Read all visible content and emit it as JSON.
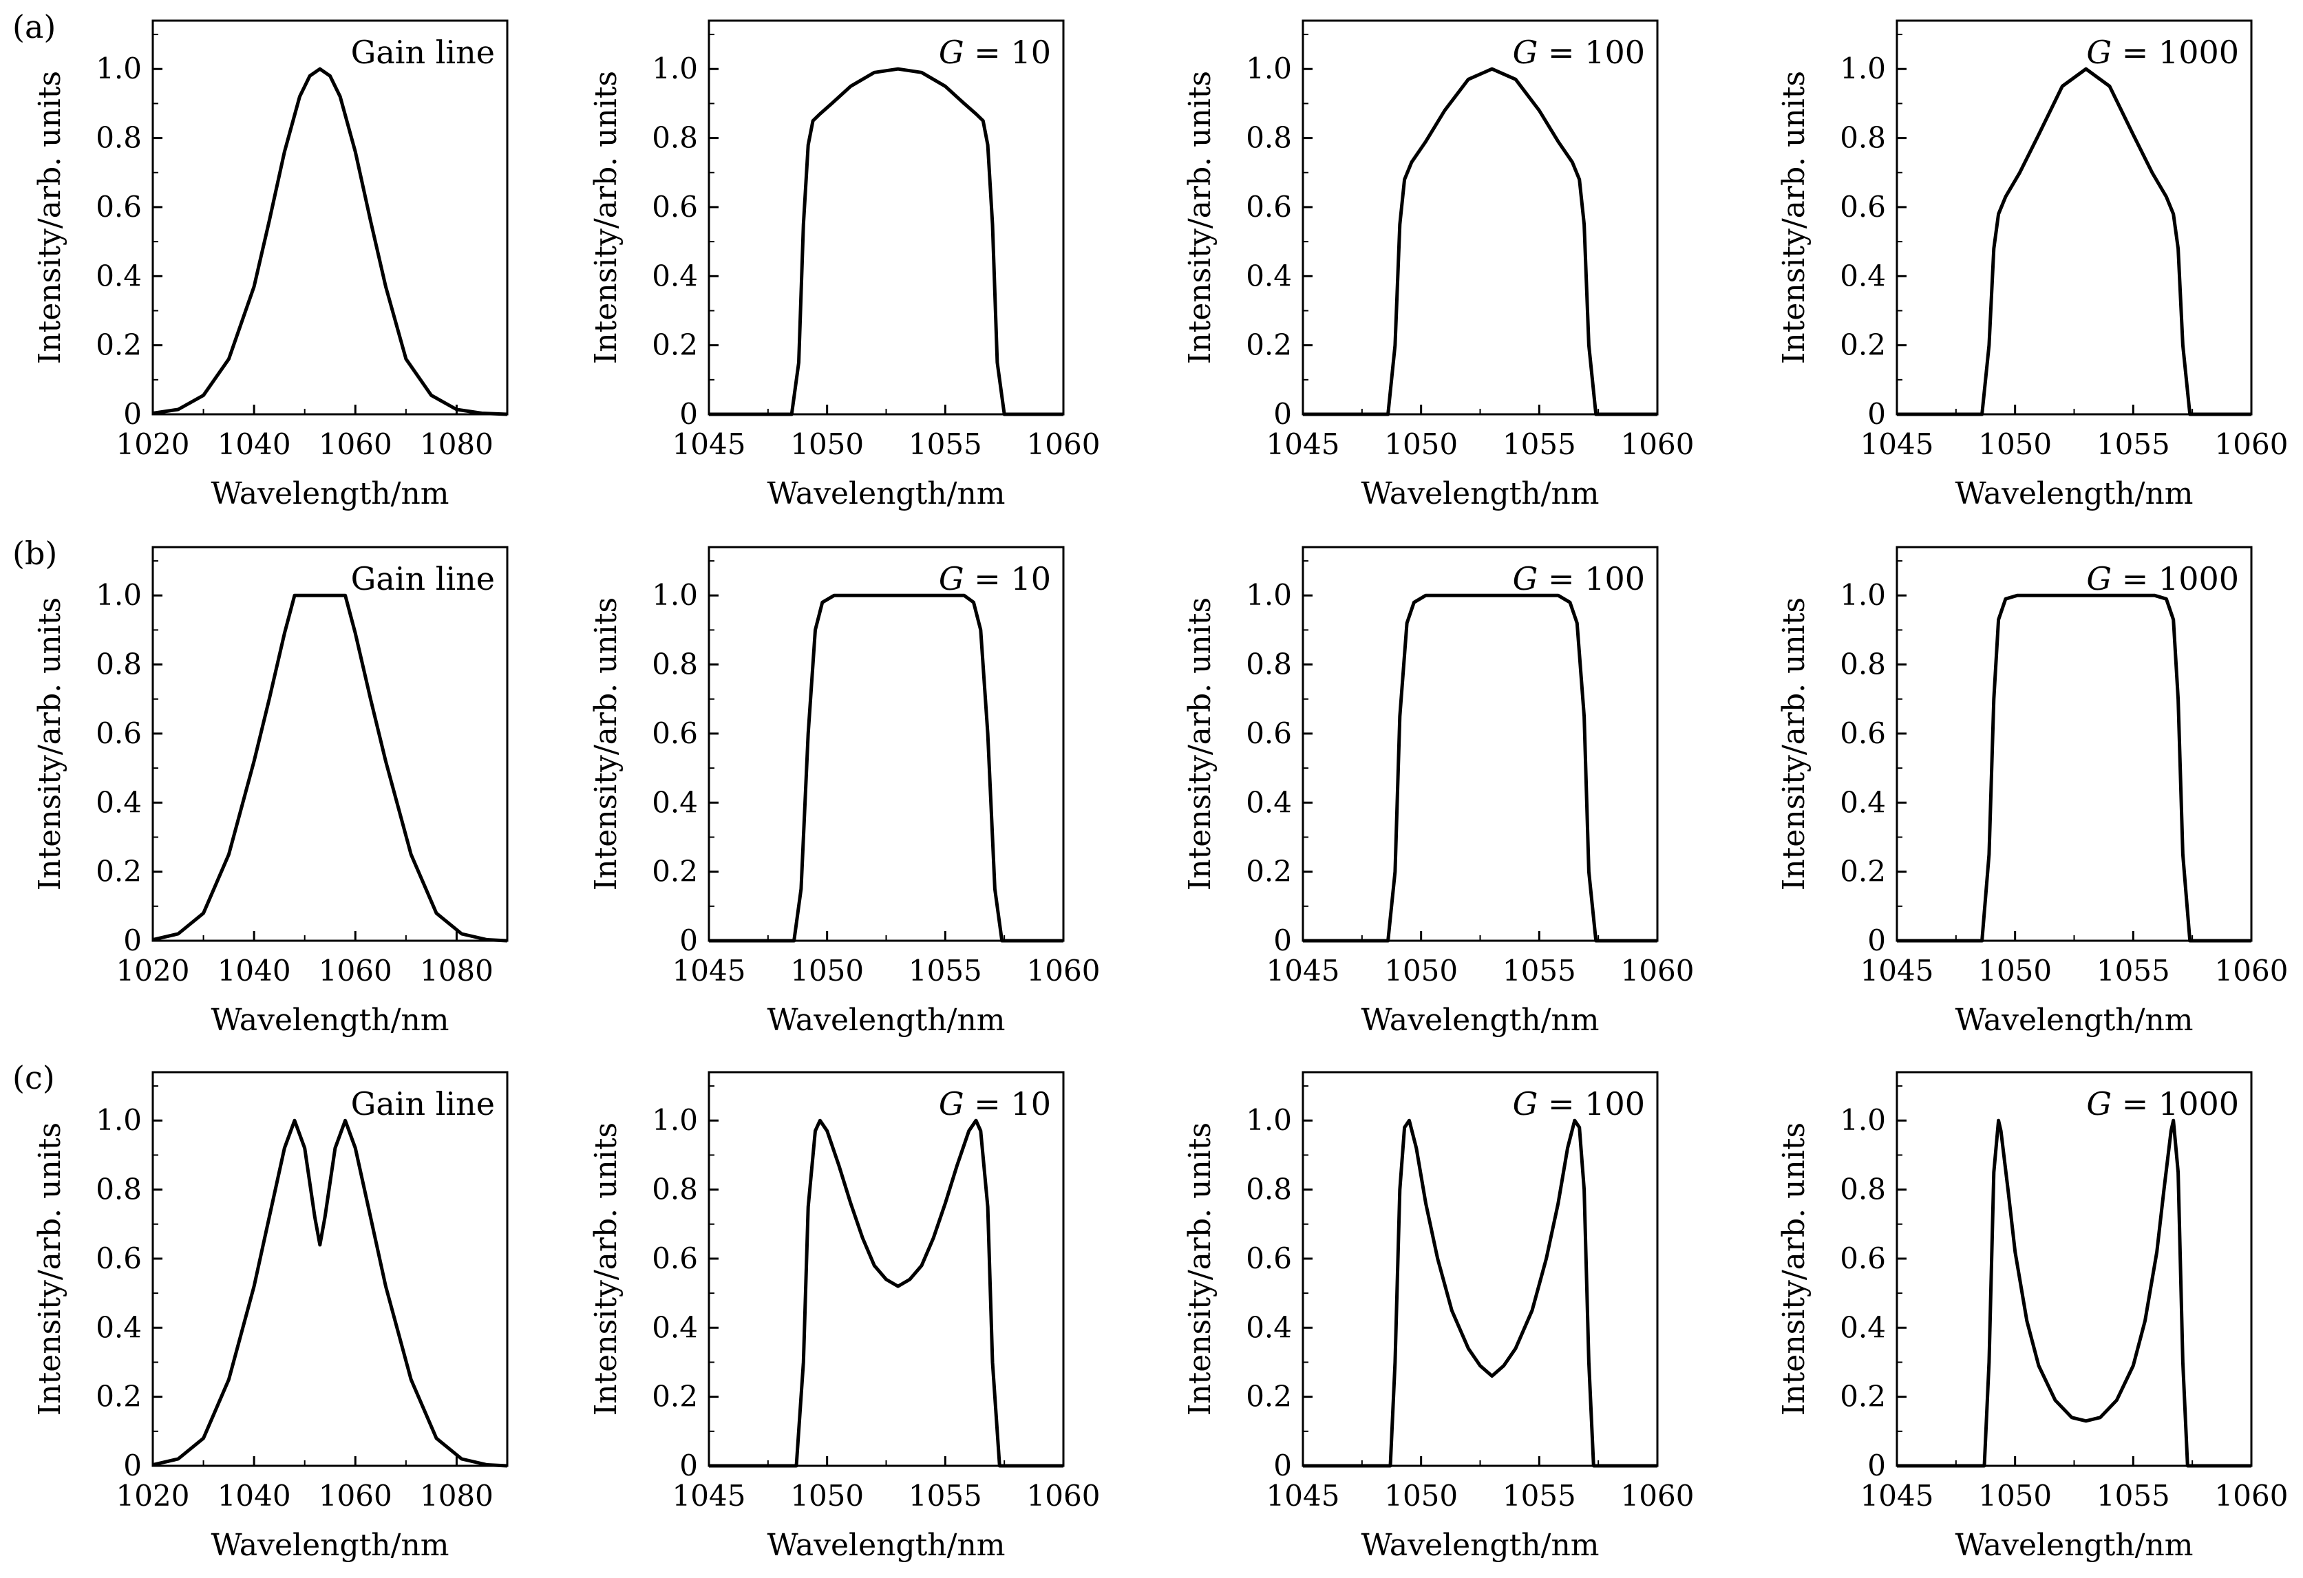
{
  "figure": {
    "rows": [
      {
        "label": "(a)",
        "gain_shape": "gaussian"
      },
      {
        "label": "(b)",
        "gain_shape": "flat-top"
      },
      {
        "label": "(c)",
        "gain_shape": "double-peak"
      }
    ]
  },
  "chart_data": [
    {
      "id": "a1",
      "type": "line",
      "row": "(a)",
      "label": "Gain line",
      "xlabel": "Wavelength/nm",
      "ylabel": "Intensity/arb. units",
      "xlim": [
        1020,
        1090
      ],
      "ylim": [
        0,
        1.14
      ],
      "xticks": [
        1020,
        1040,
        1060,
        1080
      ],
      "xtick_labels": [
        "1020",
        "1040",
        "1060",
        "1080"
      ],
      "yticks": [
        0,
        0.2,
        0.4,
        0.6,
        0.8,
        1.0
      ],
      "ytick_labels": [
        "0",
        "0.2",
        "0.4",
        "0.6",
        "0.8",
        "1.0"
      ],
      "x": [
        1020,
        1025,
        1030,
        1035,
        1040,
        1043,
        1046,
        1049,
        1051,
        1053,
        1055,
        1057,
        1060,
        1063,
        1066,
        1070,
        1075,
        1080,
        1085,
        1090
      ],
      "y": [
        0.003,
        0.014,
        0.055,
        0.16,
        0.37,
        0.56,
        0.76,
        0.92,
        0.98,
        1.0,
        0.98,
        0.92,
        0.76,
        0.56,
        0.37,
        0.16,
        0.055,
        0.014,
        0.003,
        0.0
      ]
    },
    {
      "id": "a2",
      "type": "line",
      "row": "(a)",
      "label": "G = 10",
      "gain": "10",
      "xlabel": "Wavelength/nm",
      "ylabel": "Intensity/arb. units",
      "xlim": [
        1045,
        1060
      ],
      "ylim": [
        0,
        1.14
      ],
      "xticks": [
        1045,
        1050,
        1055,
        1060
      ],
      "xtick_labels": [
        "1045",
        "1050",
        "1055",
        "1060"
      ],
      "yticks": [
        0,
        0.2,
        0.4,
        0.6,
        0.8,
        1.0
      ],
      "ytick_labels": [
        "0",
        "0.2",
        "0.4",
        "0.6",
        "0.8",
        "1.0"
      ],
      "x": [
        1045,
        1048.5,
        1048.8,
        1049.0,
        1049.2,
        1049.4,
        1049.7,
        1050.2,
        1051.0,
        1052.0,
        1053.0,
        1054.0,
        1055.0,
        1055.8,
        1056.3,
        1056.6,
        1056.8,
        1057.0,
        1057.2,
        1057.5,
        1060
      ],
      "y": [
        0,
        0,
        0.15,
        0.55,
        0.78,
        0.85,
        0.87,
        0.9,
        0.95,
        0.99,
        1.0,
        0.99,
        0.95,
        0.9,
        0.87,
        0.85,
        0.78,
        0.55,
        0.15,
        0,
        0
      ]
    },
    {
      "id": "a3",
      "type": "line",
      "row": "(a)",
      "label": "G = 100",
      "gain": "100",
      "xlabel": "Wavelength/nm",
      "ylabel": "Intensity/arb. units",
      "xlim": [
        1045,
        1060
      ],
      "ylim": [
        0,
        1.14
      ],
      "xticks": [
        1045,
        1050,
        1055,
        1060
      ],
      "xtick_labels": [
        "1045",
        "1050",
        "1055",
        "1060"
      ],
      "yticks": [
        0,
        0.2,
        0.4,
        0.6,
        0.8,
        1.0
      ],
      "ytick_labels": [
        "0",
        "0.2",
        "0.4",
        "0.6",
        "0.8",
        "1.0"
      ],
      "x": [
        1045,
        1048.6,
        1048.9,
        1049.1,
        1049.3,
        1049.6,
        1050.2,
        1051.0,
        1052.0,
        1053.0,
        1054.0,
        1055.0,
        1055.8,
        1056.4,
        1056.7,
        1056.9,
        1057.1,
        1057.4,
        1060
      ],
      "y": [
        0,
        0,
        0.2,
        0.55,
        0.68,
        0.73,
        0.79,
        0.88,
        0.97,
        1.0,
        0.97,
        0.88,
        0.79,
        0.73,
        0.68,
        0.55,
        0.2,
        0,
        0
      ]
    },
    {
      "id": "a4",
      "type": "line",
      "row": "(a)",
      "label": "G = 1000",
      "gain": "1000",
      "xlabel": "Wavelength/nm",
      "ylabel": "Intensity/arb. units",
      "xlim": [
        1045,
        1060
      ],
      "ylim": [
        0,
        1.14
      ],
      "xticks": [
        1045,
        1050,
        1055,
        1060
      ],
      "xtick_labels": [
        "1045",
        "1050",
        "1055",
        "1060"
      ],
      "yticks": [
        0,
        0.2,
        0.4,
        0.6,
        0.8,
        1.0
      ],
      "ytick_labels": [
        "0",
        "0.2",
        "0.4",
        "0.6",
        "0.8",
        "1.0"
      ],
      "x": [
        1045,
        1048.6,
        1048.9,
        1049.1,
        1049.3,
        1049.6,
        1050.2,
        1051.0,
        1052.0,
        1053.0,
        1054.0,
        1055.0,
        1055.8,
        1056.4,
        1056.7,
        1056.9,
        1057.1,
        1057.4,
        1060
      ],
      "y": [
        0,
        0,
        0.2,
        0.48,
        0.58,
        0.63,
        0.7,
        0.81,
        0.95,
        1.0,
        0.95,
        0.81,
        0.7,
        0.63,
        0.58,
        0.48,
        0.2,
        0,
        0
      ]
    },
    {
      "id": "b1",
      "type": "line",
      "row": "(b)",
      "label": "Gain line",
      "xlabel": "Wavelength/nm",
      "ylabel": "Intensity/arb. units",
      "xlim": [
        1020,
        1090
      ],
      "ylim": [
        0,
        1.14
      ],
      "xticks": [
        1020,
        1040,
        1060,
        1080
      ],
      "xtick_labels": [
        "1020",
        "1040",
        "1060",
        "1080"
      ],
      "yticks": [
        0,
        0.2,
        0.4,
        0.6,
        0.8,
        1.0
      ],
      "ytick_labels": [
        "0",
        "0.2",
        "0.4",
        "0.6",
        "0.8",
        "1.0"
      ],
      "x": [
        1020,
        1025,
        1030,
        1035,
        1040,
        1043,
        1046,
        1048,
        1058,
        1060,
        1063,
        1066,
        1071,
        1076,
        1081,
        1086,
        1090
      ],
      "y": [
        0.003,
        0.02,
        0.08,
        0.25,
        0.52,
        0.7,
        0.89,
        1.0,
        1.0,
        0.89,
        0.7,
        0.52,
        0.25,
        0.08,
        0.02,
        0.003,
        0.0
      ]
    },
    {
      "id": "b2",
      "type": "line",
      "row": "(b)",
      "label": "G = 10",
      "gain": "10",
      "xlabel": "Wavelength/nm",
      "ylabel": "Intensity/arb. units",
      "xlim": [
        1045,
        1060
      ],
      "ylim": [
        0,
        1.14
      ],
      "xticks": [
        1045,
        1050,
        1055,
        1060
      ],
      "xtick_labels": [
        "1045",
        "1050",
        "1055",
        "1060"
      ],
      "yticks": [
        0,
        0.2,
        0.4,
        0.6,
        0.8,
        1.0
      ],
      "ytick_labels": [
        "0",
        "0.2",
        "0.4",
        "0.6",
        "0.8",
        "1.0"
      ],
      "x": [
        1045,
        1048.6,
        1048.9,
        1049.2,
        1049.5,
        1049.8,
        1050.3,
        1053.0,
        1055.8,
        1056.2,
        1056.5,
        1056.8,
        1057.1,
        1057.4,
        1060
      ],
      "y": [
        0,
        0,
        0.15,
        0.6,
        0.9,
        0.98,
        1.0,
        1.0,
        1.0,
        0.98,
        0.9,
        0.6,
        0.15,
        0,
        0
      ]
    },
    {
      "id": "b3",
      "type": "line",
      "row": "(b)",
      "label": "G = 100",
      "gain": "100",
      "xlabel": "Wavelength/nm",
      "ylabel": "Intensity/arb. units",
      "xlim": [
        1045,
        1060
      ],
      "ylim": [
        0,
        1.14
      ],
      "xticks": [
        1045,
        1050,
        1055,
        1060
      ],
      "xtick_labels": [
        "1045",
        "1050",
        "1055",
        "1060"
      ],
      "yticks": [
        0,
        0.2,
        0.4,
        0.6,
        0.8,
        1.0
      ],
      "ytick_labels": [
        "0",
        "0.2",
        "0.4",
        "0.6",
        "0.8",
        "1.0"
      ],
      "x": [
        1045,
        1048.6,
        1048.9,
        1049.1,
        1049.4,
        1049.7,
        1050.2,
        1053.0,
        1055.8,
        1056.3,
        1056.6,
        1056.9,
        1057.1,
        1057.4,
        1060
      ],
      "y": [
        0,
        0,
        0.2,
        0.65,
        0.92,
        0.98,
        1.0,
        1.0,
        1.0,
        0.98,
        0.92,
        0.65,
        0.2,
        0,
        0
      ]
    },
    {
      "id": "b4",
      "type": "line",
      "row": "(b)",
      "label": "G = 1000",
      "gain": "1000",
      "xlabel": "Wavelength/nm",
      "ylabel": "Intensity/arb. units",
      "xlim": [
        1045,
        1060
      ],
      "ylim": [
        0,
        1.14
      ],
      "xticks": [
        1045,
        1050,
        1055,
        1060
      ],
      "xtick_labels": [
        "1045",
        "1050",
        "1055",
        "1060"
      ],
      "yticks": [
        0,
        0.2,
        0.4,
        0.6,
        0.8,
        1.0
      ],
      "ytick_labels": [
        "0",
        "0.2",
        "0.4",
        "0.6",
        "0.8",
        "1.0"
      ],
      "x": [
        1045,
        1048.6,
        1048.9,
        1049.1,
        1049.3,
        1049.6,
        1050.1,
        1053.0,
        1055.9,
        1056.4,
        1056.7,
        1056.9,
        1057.1,
        1057.4,
        1060
      ],
      "y": [
        0,
        0,
        0.25,
        0.7,
        0.93,
        0.99,
        1.0,
        1.0,
        1.0,
        0.99,
        0.93,
        0.7,
        0.25,
        0,
        0
      ]
    },
    {
      "id": "c1",
      "type": "line",
      "row": "(c)",
      "label": "Gain line",
      "xlabel": "Wavelength/nm",
      "ylabel": "Intensity/arb. units",
      "xlim": [
        1020,
        1090
      ],
      "ylim": [
        0,
        1.14
      ],
      "xticks": [
        1020,
        1040,
        1060,
        1080
      ],
      "xtick_labels": [
        "1020",
        "1040",
        "1060",
        "1080"
      ],
      "yticks": [
        0,
        0.2,
        0.4,
        0.6,
        0.8,
        1.0
      ],
      "ytick_labels": [
        "0",
        "0.2",
        "0.4",
        "0.6",
        "0.8",
        "1.0"
      ],
      "x": [
        1020,
        1025,
        1030,
        1035,
        1040,
        1043,
        1046,
        1048,
        1050,
        1052,
        1053,
        1054,
        1056,
        1058,
        1060,
        1063,
        1066,
        1071,
        1076,
        1081,
        1086,
        1090
      ],
      "y": [
        0.003,
        0.02,
        0.08,
        0.25,
        0.52,
        0.72,
        0.92,
        1.0,
        0.92,
        0.72,
        0.64,
        0.72,
        0.92,
        1.0,
        0.92,
        0.72,
        0.52,
        0.25,
        0.08,
        0.02,
        0.003,
        0.0
      ]
    },
    {
      "id": "c2",
      "type": "line",
      "row": "(c)",
      "label": "G = 10",
      "gain": "10",
      "xlabel": "Wavelength/nm",
      "ylabel": "Intensity/arb. units",
      "xlim": [
        1045,
        1060
      ],
      "ylim": [
        0,
        1.14
      ],
      "xticks": [
        1045,
        1050,
        1055,
        1060
      ],
      "xtick_labels": [
        "1045",
        "1050",
        "1055",
        "1060"
      ],
      "yticks": [
        0,
        0.2,
        0.4,
        0.6,
        0.8,
        1.0
      ],
      "ytick_labels": [
        "0",
        "0.2",
        "0.4",
        "0.6",
        "0.8",
        "1.0"
      ],
      "x": [
        1045,
        1048.7,
        1049.0,
        1049.2,
        1049.5,
        1049.7,
        1050.0,
        1050.5,
        1051.0,
        1051.5,
        1052.0,
        1052.5,
        1053.0,
        1053.5,
        1054.0,
        1054.5,
        1055.0,
        1055.5,
        1056.0,
        1056.3,
        1056.5,
        1056.8,
        1057.0,
        1057.3,
        1060
      ],
      "y": [
        0,
        0,
        0.3,
        0.75,
        0.97,
        1.0,
        0.97,
        0.87,
        0.76,
        0.66,
        0.58,
        0.54,
        0.52,
        0.54,
        0.58,
        0.66,
        0.76,
        0.87,
        0.97,
        1.0,
        0.97,
        0.75,
        0.3,
        0,
        0
      ]
    },
    {
      "id": "c3",
      "type": "line",
      "row": "(c)",
      "label": "G = 100",
      "gain": "100",
      "xlabel": "Wavelength/nm",
      "ylabel": "Intensity/arb. units",
      "xlim": [
        1045,
        1060
      ],
      "ylim": [
        0,
        1.14
      ],
      "xticks": [
        1045,
        1050,
        1055,
        1060
      ],
      "xtick_labels": [
        "1045",
        "1050",
        "1055",
        "1060"
      ],
      "yticks": [
        0,
        0.2,
        0.4,
        0.6,
        0.8,
        1.0
      ],
      "ytick_labels": [
        "0",
        "0.2",
        "0.4",
        "0.6",
        "0.8",
        "1.0"
      ],
      "x": [
        1045,
        1048.7,
        1048.9,
        1049.1,
        1049.3,
        1049.5,
        1049.8,
        1050.2,
        1050.7,
        1051.3,
        1052.0,
        1052.5,
        1053.0,
        1053.5,
        1054.0,
        1054.7,
        1055.3,
        1055.8,
        1056.2,
        1056.5,
        1056.7,
        1056.9,
        1057.1,
        1057.3,
        1060
      ],
      "y": [
        0,
        0,
        0.3,
        0.8,
        0.98,
        1.0,
        0.92,
        0.76,
        0.6,
        0.45,
        0.34,
        0.29,
        0.26,
        0.29,
        0.34,
        0.45,
        0.6,
        0.76,
        0.92,
        1.0,
        0.98,
        0.8,
        0.3,
        0,
        0
      ]
    },
    {
      "id": "c4",
      "type": "line",
      "row": "(c)",
      "label": "G = 1000",
      "gain": "1000",
      "xlabel": "Wavelength/nm",
      "ylabel": "Intensity/arb. units",
      "xlim": [
        1045,
        1060
      ],
      "ylim": [
        0,
        1.14
      ],
      "xticks": [
        1045,
        1050,
        1055,
        1060
      ],
      "xtick_labels": [
        "1045",
        "1050",
        "1055",
        "1060"
      ],
      "yticks": [
        0,
        0.2,
        0.4,
        0.6,
        0.8,
        1.0
      ],
      "ytick_labels": [
        "0",
        "0.2",
        "0.4",
        "0.6",
        "0.8",
        "1.0"
      ],
      "x": [
        1045,
        1048.7,
        1048.9,
        1049.1,
        1049.3,
        1049.4,
        1049.7,
        1050.0,
        1050.5,
        1051.0,
        1051.7,
        1052.4,
        1053.0,
        1053.6,
        1054.3,
        1055.0,
        1055.5,
        1056.0,
        1056.3,
        1056.6,
        1056.7,
        1056.9,
        1057.1,
        1057.3,
        1060
      ],
      "y": [
        0,
        0,
        0.3,
        0.85,
        1.0,
        0.97,
        0.8,
        0.62,
        0.42,
        0.29,
        0.19,
        0.14,
        0.13,
        0.14,
        0.19,
        0.29,
        0.42,
        0.62,
        0.8,
        0.97,
        1.0,
        0.85,
        0.3,
        0,
        0
      ]
    }
  ]
}
